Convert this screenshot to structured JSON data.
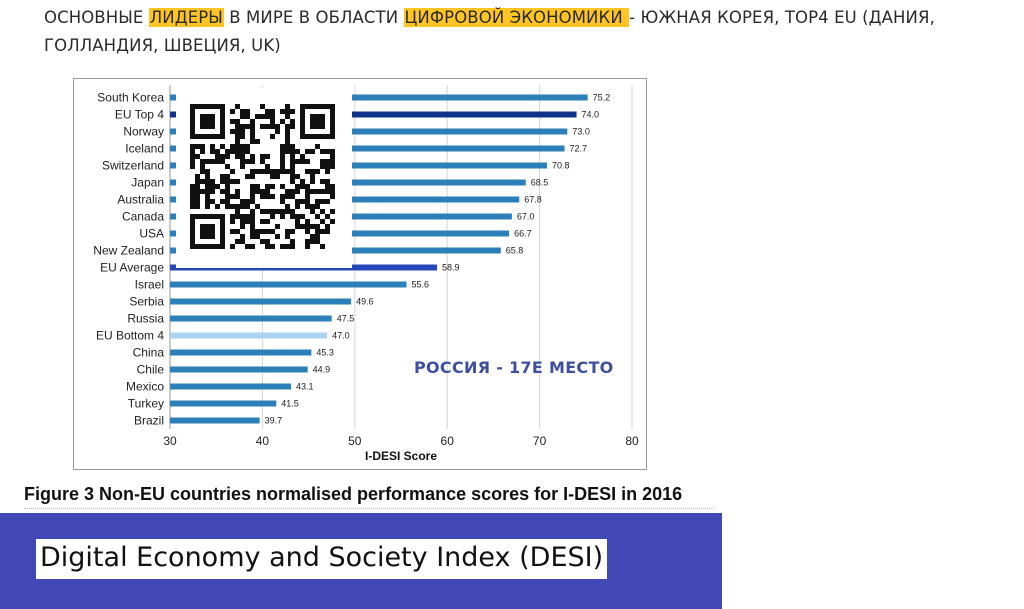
{
  "heading": {
    "part1": "ОСНОВНЫЕ ",
    "highlight1": "ЛИДЕРЫ",
    "part2": " В МИРЕ В ОБЛАСТИ ",
    "highlight2": "ЦИФРОВОЙ ЭКОНОМИКИ ",
    "part3": "- ЮЖНАЯ КОРЕЯ,  TOP4 EU (ДАНИЯ, ГОЛЛАНДИЯ, ШВЕЦИЯ, UK)",
    "highlight_color": "#ffc524"
  },
  "annotation": "РОССИЯ - 17Е МЕСТО",
  "caption": "Figure 3  Non-EU countries normalised performance scores for I-DESI in 2016",
  "banner": {
    "text": "Digital Economy and Society Index (DESI)",
    "color": "#4248b5"
  },
  "qr": {
    "icon": "qr-code-icon"
  },
  "chart_data": {
    "type": "bar",
    "orientation": "horizontal",
    "categories": [
      "South Korea",
      "EU Top 4",
      "Norway",
      "Iceland",
      "Switzerland",
      "Japan",
      "Australia",
      "Canada",
      "USA",
      "New Zealand",
      "EU Average",
      "Israel",
      "Serbia",
      "Russia",
      "EU Bottom 4",
      "China",
      "Chile",
      "Mexico",
      "Turkey",
      "Brazil"
    ],
    "values": [
      75.2,
      74.0,
      73.0,
      72.7,
      70.8,
      68.5,
      67.8,
      67.0,
      66.7,
      65.8,
      58.9,
      55.6,
      49.6,
      47.5,
      47.0,
      45.3,
      44.9,
      43.1,
      41.5,
      39.7
    ],
    "value_labels": [
      "75.2",
      "74.0",
      "73.0",
      "72.7",
      "70.8",
      "68.5",
      "67.8",
      "67.0",
      "66.7",
      "65.8",
      "58.9",
      "55.6",
      "49.6",
      "47.5",
      "47.0",
      "45.3",
      "44.9",
      "43.1",
      "41.5",
      "39.7"
    ],
    "highlight": {
      "EU Top 4": "#10338a",
      "EU Average": "#2747b8",
      "EU Bottom 4": "#a9d3ef"
    },
    "bar_color": "#2d7fba",
    "xlabel": "I-DESI Score",
    "xlim": [
      30,
      80
    ],
    "xticks": [
      30,
      40,
      50,
      60,
      70,
      80
    ],
    "grid": true
  }
}
